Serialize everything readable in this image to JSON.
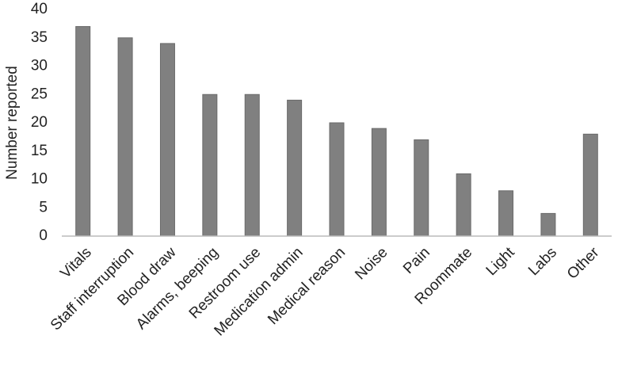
{
  "chart_data": {
    "type": "bar",
    "y_label": "Number reported",
    "categories": [
      "Vitals",
      "Staff interruption",
      "Blood draw",
      "Alarms, beeping",
      "Restroom use",
      "Medication admin",
      "Medical reason",
      "Noise",
      "Pain",
      "Roommate",
      "Light",
      "Labs",
      "Other"
    ],
    "values": [
      37,
      35,
      34,
      25,
      25,
      24,
      20,
      19,
      17,
      11,
      8,
      4,
      18
    ],
    "color": "#808080",
    "ylim": [
      0,
      40
    ],
    "yticks": [
      0,
      5,
      10,
      15,
      20,
      25,
      30,
      35,
      40
    ],
    "grid": false
  }
}
